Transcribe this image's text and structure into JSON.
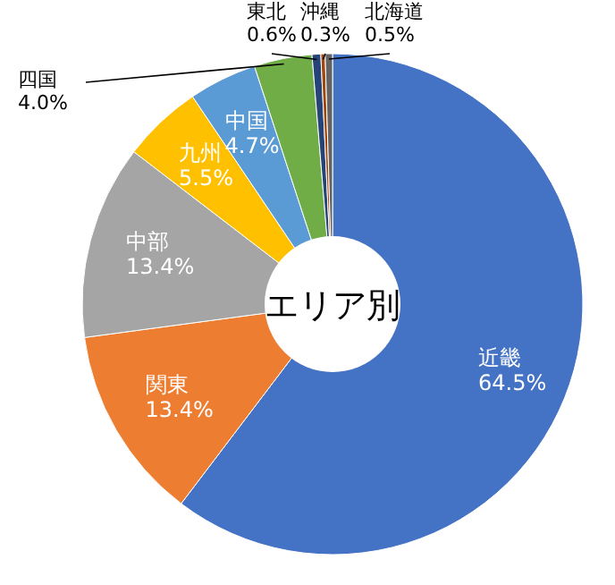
{
  "chart_data": {
    "type": "donut",
    "title": "エリア別",
    "categories": [
      "近畿",
      "関東",
      "中部",
      "九州",
      "中国",
      "四国",
      "東北",
      "沖縄",
      "北海道"
    ],
    "values": [
      64.5,
      13.4,
      13.4,
      5.5,
      4.7,
      4.0,
      0.6,
      0.3,
      0.5
    ],
    "colors": [
      "#4472c4",
      "#ed7d31",
      "#a5a5a5",
      "#ffc000",
      "#5b9bd5",
      "#70ad47",
      "#264478",
      "#9e480e",
      "#636363"
    ],
    "value_labels": [
      "64.5%",
      "13.4%",
      "13.4%",
      "5.5%",
      "4.7%",
      "4.0%",
      "0.6%",
      "0.3%",
      "0.5%"
    ]
  }
}
